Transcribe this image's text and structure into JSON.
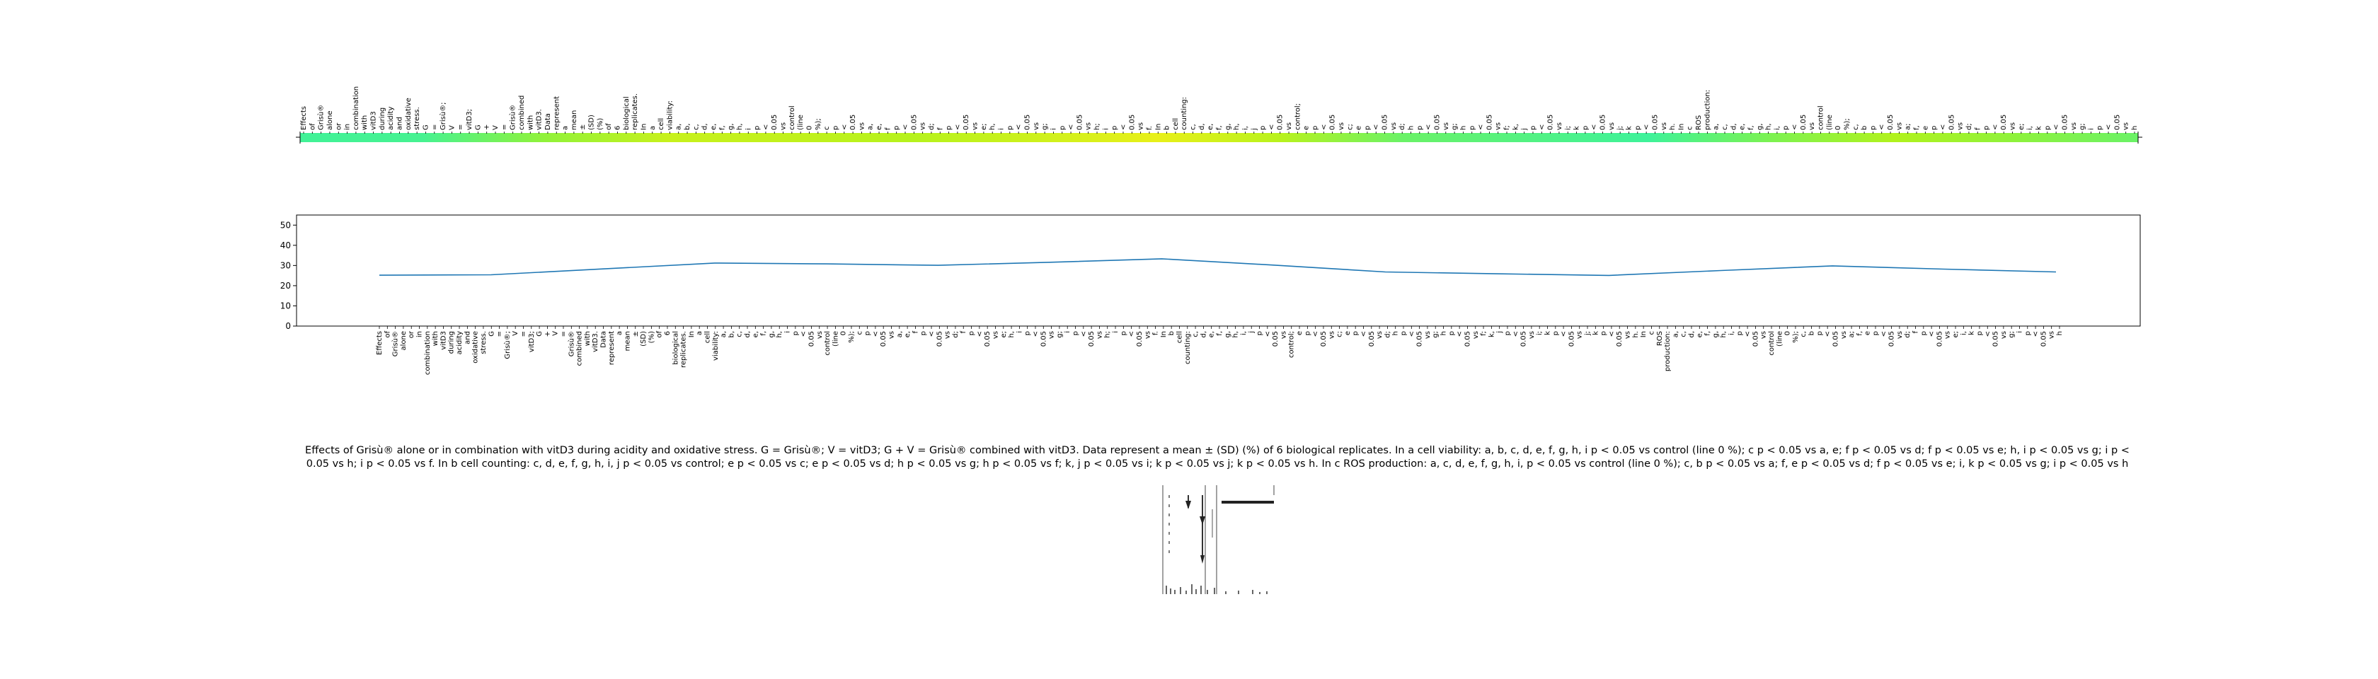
{
  "chart_data": [
    {
      "type": "heatmap",
      "title": "",
      "xlabel": "",
      "ylabel": "",
      "colormap": "viridis-like",
      "tick_labels": [
        "Effects",
        "of",
        "Grisù®",
        "alone",
        "or",
        "in",
        "combination",
        "with",
        "vitD3",
        "during",
        "acidity",
        "and",
        "oxidative",
        "stress.",
        "G",
        "=",
        "Grisù®;",
        "V",
        "=",
        "vitD3;",
        "G",
        "+",
        "V",
        "=",
        "Grisù®",
        "combined",
        "with",
        "vitD3.",
        "Data",
        "represent",
        "a",
        "mean",
        "±",
        "(SD)",
        "(%)",
        "of",
        "6",
        "biological",
        "replicates.",
        "In",
        "a",
        "cell",
        "viability:",
        "a,",
        "b,",
        "c,",
        "d,",
        "e,",
        "f,",
        "g,",
        "h,",
        "i",
        "p",
        "<",
        "0.05",
        "vs",
        "control",
        "(line",
        "0",
        "%);",
        "c",
        "p",
        "<",
        "0.05",
        "vs",
        "a,",
        "e,",
        "f",
        "p",
        "<",
        "0.05",
        "vs",
        "d;",
        "f",
        "p",
        "<",
        "0.05",
        "vs",
        "e;",
        "h,",
        "i",
        "p",
        "<",
        "0.05",
        "vs",
        "g;",
        "i",
        "p",
        "<",
        "0.05",
        "vs",
        "h;",
        "i",
        "p",
        "<",
        "0.05",
        "vs",
        "f.",
        "In",
        "b",
        "cell",
        "counting:",
        "c,",
        "d,",
        "e,",
        "f,",
        "g,",
        "h,",
        "i,",
        "j",
        "p",
        "<",
        "0.05",
        "vs",
        "control;",
        "e",
        "p",
        "<",
        "0.05",
        "vs",
        "c;",
        "e",
        "p",
        "<",
        "0.05",
        "vs",
        "d;",
        "h",
        "p",
        "<",
        "0.05",
        "vs",
        "g;",
        "h",
        "p",
        "<",
        "0.05",
        "vs",
        "f;",
        "k,",
        "j",
        "p",
        "<",
        "0.05",
        "vs",
        "i;",
        "k",
        "p",
        "<",
        "0.05",
        "vs",
        "j;",
        "k",
        "p",
        "<",
        "0.05",
        "vs",
        "h.",
        "In",
        "c",
        "ROS",
        "production:",
        "a,",
        "c,",
        "d,",
        "e,",
        "f,",
        "g,",
        "h,",
        "i,",
        "p",
        "<",
        "0.05",
        "vs",
        "control",
        "(line",
        "0",
        "%);",
        "c,",
        "b",
        "p",
        "<",
        "0.05",
        "vs",
        "a;",
        "f,",
        "e",
        "p",
        "<",
        "0.05",
        "vs",
        "d;",
        "f",
        "p",
        "<",
        "0.05",
        "vs",
        "e;",
        "i,",
        "k",
        "p",
        "<",
        "0.05",
        "vs",
        "g;",
        "i",
        "p",
        "<",
        "0.05",
        "vs",
        "h"
      ],
      "values": [
        25.2,
        25.4,
        28.3,
        31.2,
        30.8,
        30.1,
        31.6,
        33.3,
        30.2,
        26.8,
        25.9,
        25.1,
        27.5,
        29.8,
        28.2,
        26.8
      ]
    },
    {
      "type": "line",
      "title": "",
      "xlabel": "",
      "ylabel": "",
      "ylim": [
        0,
        55
      ],
      "yticks": [
        0,
        10,
        20,
        30,
        40,
        50
      ],
      "grid": false,
      "x": [
        0,
        1,
        2,
        3,
        4,
        5,
        6,
        7,
        8,
        9,
        10,
        11,
        12,
        13,
        14,
        15
      ],
      "series": [
        {
          "values": [
            25.2,
            25.4,
            28.3,
            31.2,
            30.8,
            30.1,
            31.6,
            33.3,
            30.2,
            26.8,
            25.9,
            25.1,
            27.5,
            29.8,
            28.2,
            26.8
          ]
        }
      ]
    }
  ],
  "caption": "Effects of Grisù® alone or in combination with vitD3 during acidity and oxidative stress. G = Grisù®; V = vitD3; G + V = Grisù® combined with vitD3. Data represent a mean ± (SD) (%) of 6 biological replicates. In a cell viability: a, b, c, d, e, f, g, h, i p < 0.05 vs control (line 0 %); c p < 0.05 vs a, e; f p < 0.05 vs d; f p < 0.05 vs e; h, i p < 0.05 vs g; i p < 0.05 vs h; i p < 0.05 vs f. In b cell counting: c, d, e, f, g, h, i, j p < 0.05 vs control; e p < 0.05 vs c; e p < 0.05 vs d; h p < 0.05 vs g; h p < 0.05 vs f; k, j p < 0.05 vs i; k p < 0.05 vs j; k p < 0.05 vs h. In c ROS production: a, c, d, e, f, g, h, i, p < 0.05 vs control (line 0 %); c, b p < 0.05 vs a; f, e p < 0.05 vs d; f p < 0.05 vs e; i, k p < 0.05 vs g; i p < 0.05 vs h",
  "colors": {
    "line": "#1f77b4",
    "axis": "#000000",
    "heat_low": "#3ef29a",
    "heat_mid": "#a8f21e",
    "heat_high": "#e8f01a"
  }
}
